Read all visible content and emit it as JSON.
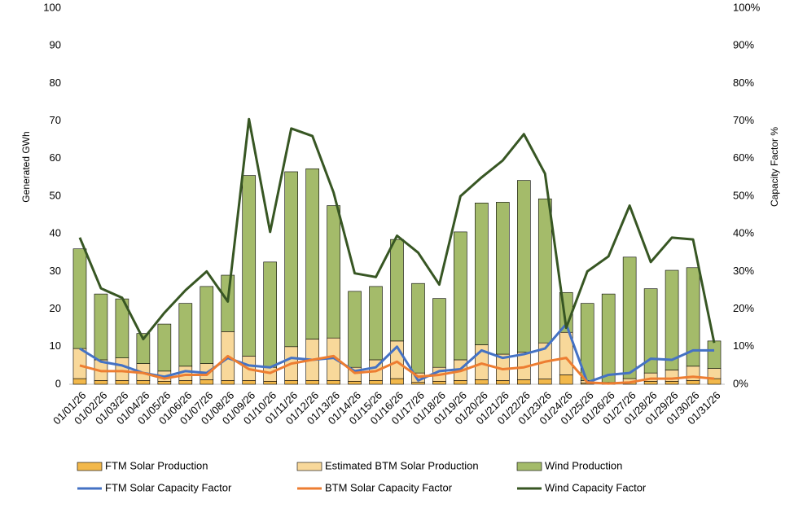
{
  "chart_data": {
    "type": "bar",
    "y_label": "Generated GWh",
    "y2_label": "Capacity Factor %",
    "categories": [
      "01/01/26",
      "01/02/26",
      "01/03/26",
      "01/04/26",
      "01/05/26",
      "01/06/26",
      "01/07/26",
      "01/08/26",
      "01/09/26",
      "01/10/26",
      "01/11/26",
      "01/12/26",
      "01/13/26",
      "01/14/26",
      "01/15/26",
      "01/16/26",
      "01/17/26",
      "01/18/26",
      "01/19/26",
      "01/20/26",
      "01/21/26",
      "01/22/26",
      "01/23/26",
      "01/24/26",
      "01/25/26",
      "01/26/26",
      "01/27/26",
      "01/28/26",
      "01/29/26",
      "01/30/26",
      "01/31/26"
    ],
    "ylim": [
      0,
      100
    ],
    "yticks": [
      0,
      10,
      20,
      30,
      40,
      50,
      60,
      70,
      80,
      90,
      100
    ],
    "y2lim": [
      0,
      100
    ],
    "y2ticks": [
      {
        "value": 0,
        "label": "0%"
      },
      {
        "value": 10,
        "label": "10%"
      },
      {
        "value": 20,
        "label": "20%"
      },
      {
        "value": 30,
        "label": "30%"
      },
      {
        "value": 40,
        "label": "40%"
      },
      {
        "value": 50,
        "label": "50%"
      },
      {
        "value": 60,
        "label": "60%"
      },
      {
        "value": 70,
        "label": "70%"
      },
      {
        "value": 80,
        "label": "80%"
      },
      {
        "value": 90,
        "label": "90%"
      },
      {
        "value": 100,
        "label": "100%"
      }
    ],
    "stacked": true,
    "series": [
      {
        "name": "FTM Solar Production",
        "type": "bar",
        "color": "#f2b84b",
        "values": [
          1.5,
          1,
          1,
          1,
          0.8,
          1,
          1.2,
          1,
          1,
          0.8,
          1,
          1,
          1,
          0.8,
          1,
          1.5,
          0.5,
          0.8,
          1,
          1.2,
          1,
          1.2,
          1.4,
          2.5,
          0.3,
          0.3,
          0.5,
          0.8,
          0.8,
          1,
          1.5
        ]
      },
      {
        "name": "Estimated BTM Solar Production",
        "type": "bar",
        "color": "#f8d89a",
        "values": [
          8,
          5.5,
          6,
          4.5,
          2.7,
          3.8,
          4.3,
          13,
          6.5,
          3.7,
          9,
          11,
          11.3,
          3.7,
          5.5,
          10,
          2.5,
          3.7,
          5.5,
          9.3,
          7,
          7.3,
          9.6,
          11.3,
          0.7,
          0.2,
          1,
          2.2,
          3,
          3.8,
          2.7
        ]
      },
      {
        "name": "Wind Production",
        "type": "bar",
        "color": "#a4bb6a",
        "values": [
          26.5,
          17.5,
          15.7,
          8,
          12.5,
          16.7,
          20.5,
          15,
          48,
          28,
          46.5,
          45.3,
          35.2,
          20.2,
          19.5,
          27,
          23.8,
          18.3,
          34,
          37.7,
          40.4,
          45.7,
          38.3,
          10.6,
          20.5,
          23.5,
          32.3,
          22.4,
          26.5,
          26.2,
          7.3
        ]
      },
      {
        "name": "FTM Solar Capacity Factor",
        "type": "line",
        "axis": "y2",
        "color": "#4472c4",
        "values": [
          9.5,
          6,
          5,
          3,
          2,
          3.5,
          3,
          7,
          5,
          4.5,
          7,
          6.5,
          7,
          3.5,
          4.5,
          10,
          1,
          3.5,
          4,
          9,
          7,
          8,
          9.5,
          16,
          0.5,
          2.5,
          3,
          6.8,
          6.5,
          9,
          9
        ]
      },
      {
        "name": "BTM Solar Capacity Factor",
        "type": "line",
        "axis": "y2",
        "color": "#ed7d31",
        "values": [
          5,
          3.5,
          3.5,
          3,
          1.5,
          2.5,
          2.5,
          7.5,
          4,
          3,
          5.5,
          6.5,
          7.5,
          3,
          3.5,
          6,
          2,
          2.5,
          3.5,
          5.5,
          4,
          4.5,
          6,
          7,
          0.5,
          0.2,
          0.5,
          1.5,
          1.5,
          2,
          1.5
        ]
      },
      {
        "name": "Wind Capacity Factor",
        "type": "line",
        "axis": "y2",
        "color": "#375623",
        "values": [
          39,
          25.5,
          23,
          12,
          19,
          25,
          30,
          22,
          70.5,
          40.5,
          68,
          66,
          51,
          29.5,
          28.5,
          39.5,
          35,
          26.5,
          50,
          55,
          59.5,
          66.5,
          56,
          15,
          30,
          34,
          47.5,
          32.5,
          39,
          38.5,
          11
        ]
      }
    ]
  }
}
